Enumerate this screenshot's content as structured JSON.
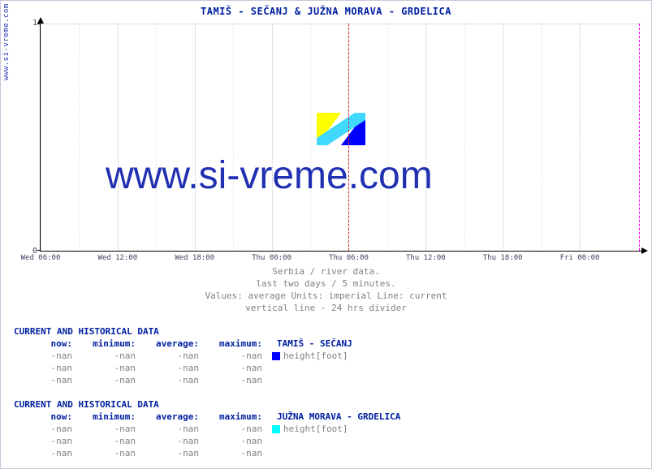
{
  "side_label": "www.si-vreme.com",
  "title": "TAMIŠ -  SEČANJ &  JUŽNA MORAVA -  GRDELICA",
  "watermark": "www.si-vreme.com",
  "chart": {
    "type": "line",
    "background_color": "#ffffff",
    "axis_color": "#000000",
    "grid_dot_color": "#aab0cc",
    "divider_now_color": "#ff00ff",
    "divider_24h_color": "#e02020",
    "ylim": [
      0,
      1
    ],
    "yticks": [
      0,
      1
    ],
    "x_labels": [
      "Wed 06:00",
      "Wed 12:00",
      "Wed 18:00",
      "Thu 00:00",
      "Thu 06:00",
      "Thu 12:00",
      "Thu 18:00",
      "Fri 00:00"
    ],
    "divider_24h_index": 4,
    "divider_now_at_right": true,
    "series": []
  },
  "logo": {
    "colors": {
      "left": "#ffff00",
      "right": "#0000ff",
      "stripe": "#40d8ff"
    }
  },
  "caption": {
    "l1": "Serbia / river data.",
    "l2": "last two days / 5 minutes.",
    "l3": "Values: average  Units: imperial  Line: current",
    "l4": "vertical line - 24 hrs  divider"
  },
  "stats_header": "CURRENT AND HISTORICAL DATA",
  "col_labels": {
    "now": "now:",
    "min": "minimum:",
    "avg": "average:",
    "max": "maximum:"
  },
  "unit_label": "height[foot]",
  "blocks": [
    {
      "location": "TAMIŠ -  SEČANJ",
      "swatch": "#0000ff",
      "rows": [
        {
          "now": "-nan",
          "min": "-nan",
          "avg": "-nan",
          "max": "-nan",
          "has_label": true
        },
        {
          "now": "-nan",
          "min": "-nan",
          "avg": "-nan",
          "max": "-nan",
          "has_label": false
        },
        {
          "now": "-nan",
          "min": "-nan",
          "avg": "-nan",
          "max": "-nan",
          "has_label": false
        }
      ]
    },
    {
      "location": "JUŽNA MORAVA -  GRDELICA",
      "swatch": "#00ffff",
      "rows": [
        {
          "now": "-nan",
          "min": "-nan",
          "avg": "-nan",
          "max": "-nan",
          "has_label": true
        },
        {
          "now": "-nan",
          "min": "-nan",
          "avg": "-nan",
          "max": "-nan",
          "has_label": false
        },
        {
          "now": "-nan",
          "min": "-nan",
          "avg": "-nan",
          "max": "-nan",
          "has_label": false
        }
      ]
    }
  ]
}
